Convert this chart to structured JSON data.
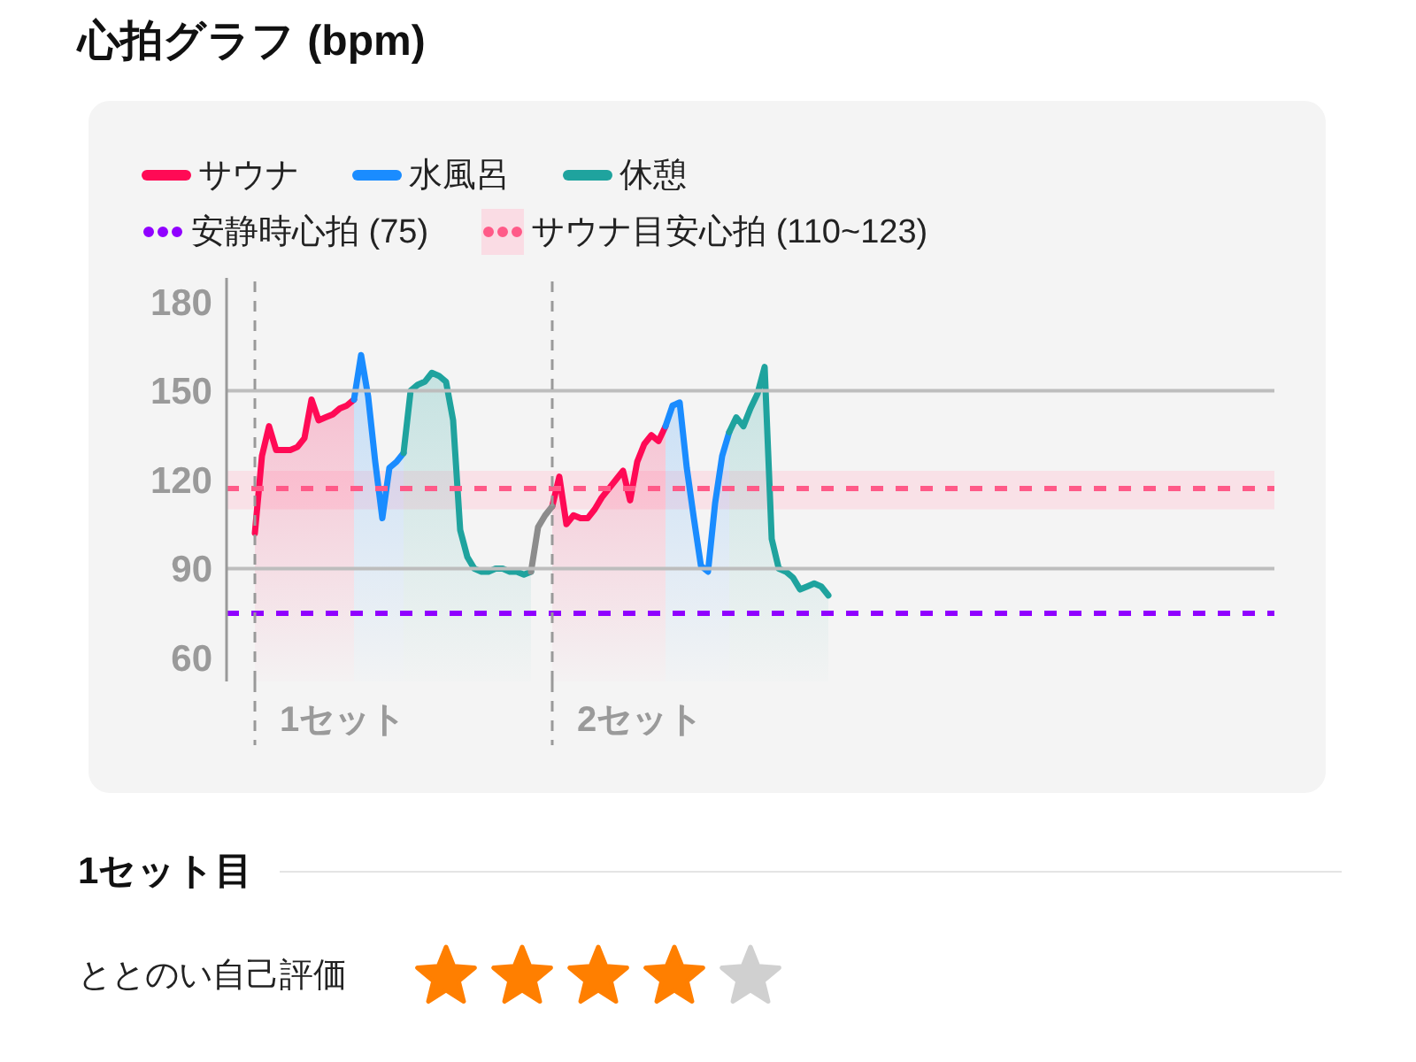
{
  "chart_data": [
    {
      "type": "area",
      "title": "心拍グラフ (bpm)",
      "categories": [
        null,
        null,
        null,
        null,
        null,
        null,
        null,
        null,
        null,
        null,
        null,
        null,
        null,
        null,
        null,
        null,
        null,
        null,
        null,
        null,
        null,
        null,
        null,
        null,
        null,
        null,
        null,
        null,
        null,
        null,
        null,
        null,
        null,
        null,
        null,
        null,
        null,
        null,
        null,
        null,
        null,
        null,
        null,
        null,
        null,
        null,
        null,
        null,
        null,
        null,
        null,
        null,
        null,
        null,
        null,
        null,
        null,
        null,
        null,
        null,
        null,
        null,
        null,
        null,
        null,
        null,
        null,
        null,
        null,
        null,
        null,
        null,
        null,
        null,
        null,
        null,
        null,
        null,
        null,
        null,
        null,
        null,
        null,
        null,
        null,
        null,
        null,
        null,
        null,
        null,
        null,
        null,
        null,
        null,
        null,
        null,
        null,
        null,
        null,
        null,
        null,
        null,
        null,
        null,
        null,
        null,
        null,
        null,
        null,
        null,
        null,
        null,
        null,
        null,
        null,
        null,
        null,
        null,
        null,
        null,
        null,
        null,
        null,
        null,
        null,
        null,
        null,
        null,
        null,
        null,
        null,
        null,
        null,
        null,
        null,
        null,
        null,
        null,
        null,
        null,
        null,
        null,
        null,
        null,
        null,
        null,
        null,
        null,
        null
      ],
      "series": [
        {
          "name": "サウナ",
          "color": "#ff0a55",
          "values": [
            null,
            null,
            null,
            null,
            102,
            128,
            138,
            130,
            130,
            130,
            131,
            134,
            147,
            140,
            141,
            142,
            144,
            145,
            147,
            null,
            null,
            null,
            null,
            null,
            null,
            null,
            null,
            null,
            null,
            null,
            null,
            null,
            null,
            null,
            null,
            null,
            null,
            null,
            null,
            null,
            null,
            null,
            null,
            null,
            null,
            null,
            111,
            121,
            105,
            108,
            107,
            107,
            110,
            114,
            117,
            120,
            123,
            113,
            126,
            132,
            135,
            133,
            138,
            null,
            null,
            null,
            null,
            null,
            null,
            null,
            null,
            null,
            null,
            null,
            null,
            null,
            null,
            null,
            null,
            null,
            null,
            null,
            null,
            null,
            null,
            null,
            null,
            null,
            null,
            null,
            null,
            null,
            null,
            null,
            null,
            null,
            null,
            null,
            null,
            null,
            null,
            null,
            null,
            null,
            null,
            null,
            null,
            null,
            null,
            null,
            null,
            null,
            null,
            null,
            null,
            null,
            null,
            null,
            null,
            null,
            null,
            null,
            null,
            null,
            null,
            null,
            null,
            null,
            null,
            null,
            null,
            null,
            null,
            null,
            null,
            null,
            null,
            null,
            null,
            null,
            null,
            null,
            null,
            null,
            null,
            null,
            null,
            null,
            null
          ]
        },
        {
          "name": "水風呂",
          "color": "#1a8cff",
          "values": [
            null,
            null,
            null,
            null,
            null,
            null,
            null,
            null,
            null,
            null,
            null,
            null,
            null,
            null,
            null,
            null,
            null,
            null,
            147,
            162,
            148,
            126,
            107,
            124,
            126,
            129,
            null,
            null,
            null,
            null,
            null,
            null,
            null,
            null,
            null,
            null,
            null,
            null,
            null,
            null,
            null,
            null,
            null,
            null,
            null,
            null,
            null,
            null,
            null,
            null,
            null,
            null,
            null,
            null,
            null,
            null,
            null,
            null,
            null,
            null,
            null,
            null,
            138,
            145,
            146,
            124,
            107,
            91,
            89,
            112,
            128,
            136,
            null,
            null,
            null,
            null,
            null,
            null,
            null,
            null,
            null,
            null,
            null,
            null,
            null,
            null,
            null,
            null,
            null,
            null,
            null,
            null,
            null,
            null,
            null,
            null,
            null,
            null,
            null,
            null,
            null,
            null,
            null,
            null,
            null,
            null,
            null,
            null,
            null,
            null,
            null,
            null,
            null,
            null,
            null,
            null,
            null,
            null,
            null,
            null,
            null,
            null,
            null,
            null,
            null,
            null,
            null,
            null,
            null,
            null,
            null,
            null,
            null,
            null,
            null,
            null,
            null,
            null,
            null,
            null,
            null,
            null,
            null,
            null,
            null,
            null,
            null,
            null,
            null
          ]
        },
        {
          "name": "休憩",
          "color": "#1fa39e",
          "values": [
            null,
            null,
            null,
            null,
            null,
            null,
            null,
            null,
            null,
            null,
            null,
            null,
            null,
            null,
            null,
            null,
            null,
            null,
            null,
            null,
            null,
            null,
            null,
            null,
            null,
            129,
            150,
            152,
            153,
            156,
            155,
            153,
            140,
            103,
            94,
            90,
            89,
            89,
            90,
            90,
            89,
            89,
            88,
            89,
            null,
            null,
            null,
            null,
            null,
            null,
            null,
            null,
            null,
            null,
            null,
            null,
            null,
            null,
            null,
            null,
            null,
            null,
            null,
            null,
            null,
            null,
            null,
            null,
            null,
            null,
            null,
            136,
            141,
            138,
            144,
            149,
            158,
            100,
            90,
            89,
            87,
            83,
            84,
            85,
            84,
            81,
            null,
            null,
            null,
            null,
            null,
            null,
            null,
            null,
            null,
            null,
            null,
            null,
            null,
            null,
            null,
            null,
            null,
            null,
            null,
            null,
            null,
            null,
            null,
            null,
            null,
            null,
            null,
            null,
            null,
            null,
            null,
            null,
            null,
            null,
            null,
            null,
            null,
            null,
            null,
            null,
            null,
            null,
            null,
            null,
            null,
            null,
            null,
            null,
            null,
            null,
            null,
            null,
            null,
            null,
            null,
            null,
            null,
            null,
            null,
            null,
            null,
            null,
            null
          ]
        },
        {
          "type": "line",
          "color": "#8c8c8c",
          "values": [
            null,
            null,
            null,
            null,
            null,
            null,
            null,
            null,
            null,
            null,
            null,
            null,
            null,
            null,
            null,
            null,
            null,
            null,
            null,
            null,
            null,
            null,
            null,
            null,
            null,
            null,
            null,
            null,
            null,
            null,
            null,
            null,
            null,
            null,
            null,
            null,
            null,
            null,
            null,
            null,
            null,
            null,
            null,
            89,
            104,
            108,
            111,
            null,
            null,
            null,
            null,
            null,
            null,
            null,
            null,
            null,
            null,
            null,
            null,
            null,
            null,
            null,
            null,
            null,
            null,
            null,
            null,
            null,
            null,
            null,
            null,
            null,
            null,
            null,
            null,
            null,
            null,
            null,
            null,
            null,
            null,
            null,
            null,
            null,
            null,
            null,
            null,
            null,
            null,
            null,
            null,
            null,
            null,
            null,
            null,
            null,
            null,
            null,
            null,
            null,
            null,
            null,
            null,
            null,
            null,
            null,
            null,
            null,
            null,
            null,
            null,
            null,
            null,
            null,
            null,
            null,
            null,
            null,
            null,
            null,
            null,
            null,
            null,
            null,
            null,
            null,
            null,
            null,
            null,
            null,
            null,
            null,
            null,
            null,
            null,
            null,
            null,
            null,
            null,
            null,
            null,
            null,
            null,
            null,
            null,
            null,
            null,
            null,
            null
          ]
        }
      ],
      "ylim": [
        52,
        188
      ],
      "yticks": [
        60,
        90,
        120,
        150,
        180
      ],
      "ref_lines": [
        {
          "axis": "y",
          "value": 150,
          "color": "#bdbdbd",
          "line_style": "solid"
        },
        {
          "axis": "y",
          "value": 90,
          "color": "#bdbdbd",
          "line_style": "solid"
        },
        {
          "axis": "y",
          "value": 75,
          "label": "安静時心拍 (75)",
          "color": "#9000ff",
          "line_style": "dashed"
        },
        {
          "axis": "y",
          "value": 117,
          "color": "#ff5a88",
          "line_style": "dashed"
        }
      ],
      "bands": [
        {
          "axis": "y",
          "from": 110,
          "to": 123,
          "label": "サウナ目安心拍 (110~123)",
          "color": "#fadce4"
        }
      ],
      "annotations": [
        "1セット",
        "2セット"
      ],
      "legend": "top left"
    },
    {
      "type": "other",
      "title": "1セット目",
      "annotations": [
        "ととのい自己評価"
      ]
    }
  ]
}
